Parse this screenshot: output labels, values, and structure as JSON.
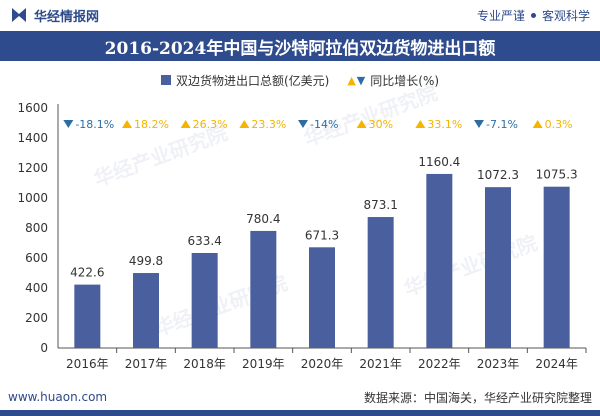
{
  "header": {
    "brand": "华经情报网",
    "slogan_left": "专业严谨",
    "slogan_right": "客观科学"
  },
  "title": "2016-2024年中国与沙特阿拉伯双边货物进出口额",
  "legend": {
    "bar": "双边货物进出口总额(亿美元)",
    "growth": "同比增长(%)"
  },
  "colors": {
    "bar": "#4a5f9e",
    "up": "#f4b400",
    "down": "#2e6da4",
    "brand": "#2e4b8e"
  },
  "chart_data": {
    "type": "bar",
    "title": "2016-2024年中国与沙特阿拉伯双边货物进出口额",
    "categories": [
      "2016年",
      "2017年",
      "2018年",
      "2019年",
      "2020年",
      "2021年",
      "2022年",
      "2023年",
      "2024年"
    ],
    "series": [
      {
        "name": "双边货物进出口总额(亿美元)",
        "values": [
          422.6,
          499.8,
          633.4,
          780.4,
          671.3,
          873.1,
          1160.4,
          1072.3,
          1075.3
        ]
      },
      {
        "name": "同比增长(%)",
        "values": [
          -18.1,
          18.2,
          26.3,
          23.3,
          -14,
          30,
          33.1,
          -7.1,
          0.3
        ]
      }
    ],
    "value_labels": [
      "422.6",
      "499.8",
      "633.4",
      "780.4",
      "671.3",
      "873.1",
      "1160.4",
      "1072.3",
      "1075.3"
    ],
    "growth_labels": [
      "-18.1%",
      "18.2%",
      "26.3%",
      "23.3%",
      "-14%",
      "30%",
      "33.1%",
      "-7.1%",
      "0.3%"
    ],
    "yticks": [
      "0",
      "200",
      "400",
      "600",
      "800",
      "1000",
      "1200",
      "1400",
      "1600"
    ],
    "ylim": [
      0,
      1600
    ],
    "xlabel": "",
    "ylabel": ""
  },
  "footer": {
    "url": "www.huaon.com",
    "source": "数据来源：中国海关，华经产业研究院整理"
  }
}
